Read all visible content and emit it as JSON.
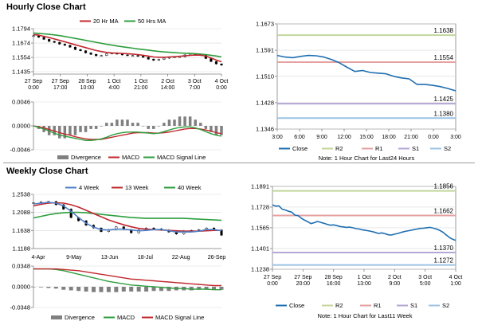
{
  "sections": {
    "hourly_title": "Hourly Close Chart",
    "weekly_title": "Weekly Close Chart"
  },
  "colors": {
    "close": "#1f6fb2",
    "ma_short": "#c0272d",
    "ma_mid": "#2e9e3e",
    "ma_long": "#2e9e3e",
    "ma_4w": "#4f7fc8",
    "divergence": "#808080",
    "macd": "#2e9e3e",
    "signal": "#c0272d",
    "r2": "#c3d69b",
    "r1": "#e6a0a0",
    "s1": "#b4a7d6",
    "s2": "#9cc3e6",
    "grid": "#d9d9d9",
    "axis": "#808080"
  },
  "chart_data": [
    {
      "id": "hourly_price",
      "type": "line",
      "legend": [
        "20 Hr MA",
        "50 Hrs MA"
      ],
      "y_ticks": [
        "1.1794",
        "1.1674",
        "1.1554",
        "1.1435"
      ],
      "ylim": [
        1.1415,
        1.1794
      ],
      "x_labels": [
        "27 Sep\n0:00",
        "27 Sep\n17:00",
        "28 Sep\n10:00",
        "1 Oct\n4:00",
        "1 Oct\n21:00",
        "2 Oct\n14:00",
        "3 Oct\n7:00",
        "4 Oct\n0:00"
      ],
      "n": 37,
      "candles": [
        1.1735,
        1.1722,
        1.1705,
        1.1688,
        1.168,
        1.1665,
        1.1655,
        1.164,
        1.162,
        1.161,
        1.1592,
        1.158,
        1.1568,
        1.157,
        1.1585,
        1.159,
        1.1582,
        1.1575,
        1.157,
        1.157,
        1.1565,
        1.1555,
        1.154,
        1.153,
        1.1538,
        1.1548,
        1.1555,
        1.1558,
        1.156,
        1.1575,
        1.1585,
        1.158,
        1.1572,
        1.1545,
        1.152,
        1.15,
        1.149
      ],
      "series": [
        {
          "name": "20 Hr MA",
          "color_key": "ma_short",
          "values": [
            1.1745,
            1.174,
            1.173,
            1.172,
            1.1708,
            1.1696,
            1.1685,
            1.1672,
            1.166,
            1.1648,
            1.1636,
            1.1624,
            1.1612,
            1.1603,
            1.1596,
            1.1592,
            1.159,
            1.1588,
            1.1585,
            1.1582,
            1.1578,
            1.1572,
            1.1565,
            1.1558,
            1.1555,
            1.1555,
            1.1557,
            1.156,
            1.1563,
            1.1567,
            1.1571,
            1.1574,
            1.1573,
            1.1565,
            1.155,
            1.1532,
            1.1518
          ]
        },
        {
          "name": "50 Hrs MA",
          "color_key": "ma_mid",
          "values": [
            1.1758,
            1.1755,
            1.1751,
            1.1747,
            1.1742,
            1.1736,
            1.1729,
            1.1721,
            1.1713,
            1.1705,
            1.1696,
            1.1688,
            1.168,
            1.1672,
            1.1664,
            1.1657,
            1.165,
            1.1643,
            1.1637,
            1.1631,
            1.1625,
            1.162,
            1.1615,
            1.1609,
            1.1604,
            1.16,
            1.1597,
            1.1594,
            1.1591,
            1.1589,
            1.1587,
            1.1585,
            1.1582,
            1.1578,
            1.1572,
            1.1566,
            1.1558
          ]
        }
      ]
    },
    {
      "id": "hourly_macd",
      "type": "bar",
      "y_ticks": [
        "0.0046",
        "0.0000",
        "-0.0046"
      ],
      "ylim": [
        -0.0046,
        0.0046
      ],
      "legend": [
        "Divergence",
        "MACD",
        "MACD Signal Line"
      ],
      "n": 37,
      "divergence": [
        0.0,
        -0.0001,
        -0.0002,
        -0.0003,
        -0.0003,
        -0.0004,
        -0.0004,
        -0.0003,
        -0.0003,
        -0.0002,
        -0.0002,
        -0.0001,
        -0.0001,
        0.0,
        0.0001,
        0.0001,
        0.0002,
        0.0002,
        0.0002,
        0.0001,
        0.0001,
        0.0,
        -0.0001,
        -0.0001,
        0.0,
        0.0001,
        0.0002,
        0.0002,
        0.0003,
        0.0003,
        0.0003,
        0.0002,
        0.0001,
        -0.0001,
        -0.0002,
        -0.0003,
        -0.0003
      ],
      "series": [
        {
          "name": "MACD",
          "color_key": "macd",
          "values": [
            0.0,
            -0.0003,
            -0.0006,
            -0.001,
            -0.0014,
            -0.0018,
            -0.002,
            -0.0022,
            -0.0024,
            -0.0026,
            -0.0028,
            -0.0028,
            -0.0027,
            -0.0025,
            -0.0022,
            -0.0018,
            -0.0015,
            -0.0013,
            -0.0012,
            -0.0012,
            -0.0012,
            -0.0013,
            -0.0014,
            -0.0015,
            -0.0014,
            -0.0011,
            -0.0008,
            -0.0005,
            -0.0003,
            -0.0002,
            -0.0002,
            -0.0004,
            -0.0007,
            -0.0011,
            -0.0015,
            -0.0018,
            -0.002
          ]
        },
        {
          "name": "MACD Signal Line",
          "color_key": "signal",
          "values": [
            0.0,
            -0.0002,
            -0.0004,
            -0.0007,
            -0.001,
            -0.0013,
            -0.0016,
            -0.0018,
            -0.0021,
            -0.0023,
            -0.0025,
            -0.0026,
            -0.0026,
            -0.0026,
            -0.0024,
            -0.0022,
            -0.002,
            -0.0018,
            -0.0016,
            -0.0014,
            -0.0013,
            -0.0013,
            -0.0013,
            -0.0014,
            -0.0014,
            -0.0013,
            -0.0012,
            -0.001,
            -0.0008,
            -0.0006,
            -0.0005,
            -0.0005,
            -0.0006,
            -0.0008,
            -0.001,
            -0.0013,
            -0.0015
          ]
        }
      ]
    },
    {
      "id": "hourly_pivot",
      "type": "line",
      "y_ticks": [
        "1.1673",
        "1.1591",
        "1.1510",
        "1.1428",
        "1.1346"
      ],
      "ylim": [
        1.1346,
        1.1673
      ],
      "x_labels": [
        "3:00",
        "6:00",
        "9:00",
        "12:00",
        "15:00",
        "18:00",
        "21:00",
        "0:00",
        "3:00"
      ],
      "close": [
        1.1575,
        1.157,
        1.1568,
        1.1572,
        1.1575,
        1.1574,
        1.157,
        1.1562,
        1.1552,
        1.1538,
        1.1525,
        1.1528,
        1.1522,
        1.152,
        1.1518,
        1.151,
        1.1505,
        1.1502,
        1.1485,
        1.1485,
        1.1482,
        1.1478,
        1.1472,
        1.1465
      ],
      "levels": [
        {
          "name": "R2",
          "value": 1.1638,
          "label": "1.1638",
          "color_key": "r2"
        },
        {
          "name": "R1",
          "value": 1.1554,
          "label": "1.1554",
          "color_key": "r1"
        },
        {
          "name": "S1",
          "value": 1.1425,
          "label": "1.1425",
          "color_key": "s1"
        },
        {
          "name": "S2",
          "value": 1.138,
          "label": "1.1380",
          "color_key": "s2"
        }
      ],
      "legend": [
        "Close",
        "R2",
        "R1",
        "S1",
        "S2"
      ],
      "note": "Note: 1 Hour Chart for Last24 Hours"
    },
    {
      "id": "weekly_price",
      "type": "line",
      "legend": [
        "4 Week",
        "13 Week",
        "40 Week"
      ],
      "y_ticks": [
        "1.2538",
        "1.2088",
        "1.1638",
        "1.1188"
      ],
      "ylim": [
        1.1188,
        1.2538
      ],
      "x_labels": [
        "4-Apr",
        "9-May",
        "13-Jun",
        "18-Jul",
        "22-Aug",
        "26-Sep"
      ],
      "n": 26,
      "candles": [
        1.233,
        1.235,
        1.236,
        1.228,
        1.217,
        1.196,
        1.188,
        1.177,
        1.17,
        1.161,
        1.166,
        1.173,
        1.166,
        1.158,
        1.165,
        1.17,
        1.168,
        1.165,
        1.16,
        1.155,
        1.163,
        1.164,
        1.166,
        1.17,
        1.165,
        1.152
      ],
      "series": [
        {
          "name": "4 Week",
          "color_key": "ma_4w",
          "values": [
            1.23,
            1.232,
            1.234,
            1.232,
            1.225,
            1.212,
            1.196,
            1.182,
            1.172,
            1.166,
            1.165,
            1.167,
            1.167,
            1.165,
            1.163,
            1.164,
            1.166,
            1.166,
            1.163,
            1.16,
            1.16,
            1.16,
            1.162,
            1.166,
            1.166,
            1.163
          ]
        },
        {
          "name": "13 Week",
          "color_key": "ma_short",
          "values": [
            1.225,
            1.229,
            1.232,
            1.233,
            1.232,
            1.228,
            1.222,
            1.214,
            1.206,
            1.198,
            1.19,
            1.184,
            1.178,
            1.173,
            1.169,
            1.167,
            1.166,
            1.165,
            1.164,
            1.163,
            1.162,
            1.162,
            1.162,
            1.163,
            1.164,
            1.164
          ]
        },
        {
          "name": "40 Week",
          "color_key": "ma_mid",
          "values": [
            1.195,
            1.199,
            1.203,
            1.206,
            1.208,
            1.209,
            1.209,
            1.208,
            1.206,
            1.204,
            1.202,
            1.2,
            1.198,
            1.196,
            1.195,
            1.194,
            1.194,
            1.194,
            1.194,
            1.194,
            1.194,
            1.193,
            1.192,
            1.191,
            1.19,
            1.189
          ]
        }
      ]
    },
    {
      "id": "weekly_macd",
      "type": "bar",
      "y_ticks": [
        "0.0348",
        "0.0000",
        "-0.0348"
      ],
      "ylim": [
        -0.0348,
        0.0348
      ],
      "legend": [
        "Divergence",
        "MACD",
        "MACD Signal Line"
      ],
      "n": 26,
      "divergence": [
        0.0,
        -0.001,
        -0.002,
        -0.003,
        -0.005,
        -0.006,
        -0.007,
        -0.008,
        -0.009,
        -0.009,
        -0.009,
        -0.009,
        -0.008,
        -0.008,
        -0.008,
        -0.008,
        -0.007,
        -0.007,
        -0.007,
        -0.006,
        -0.006,
        -0.006,
        -0.005,
        -0.005,
        -0.005,
        -0.005
      ],
      "series": [
        {
          "name": "MACD",
          "color_key": "macd",
          "values": [
            0.03,
            0.03,
            0.03,
            0.029,
            0.027,
            0.024,
            0.021,
            0.018,
            0.015,
            0.012,
            0.009,
            0.007,
            0.005,
            0.003,
            0.002,
            0.001,
            0.0,
            -0.001,
            -0.002,
            -0.003,
            -0.003,
            -0.004,
            -0.004,
            -0.004,
            -0.005,
            -0.005
          ]
        },
        {
          "name": "MACD Signal Line",
          "color_key": "signal",
          "values": [
            0.03,
            0.03,
            0.03,
            0.03,
            0.029,
            0.028,
            0.027,
            0.025,
            0.023,
            0.021,
            0.019,
            0.017,
            0.015,
            0.013,
            0.012,
            0.011,
            0.01,
            0.009,
            0.008,
            0.007,
            0.006,
            0.005,
            0.004,
            0.003,
            0.002,
            0.002
          ]
        }
      ]
    },
    {
      "id": "weekly_pivot",
      "type": "line",
      "y_ticks": [
        "1.1891",
        "1.1728",
        "1.1565",
        "1.1401",
        "1.1238"
      ],
      "ylim": [
        1.1238,
        1.1891
      ],
      "x_labels": [
        "27 Sep\n0:00",
        "27 Sep\n20:00",
        "28 Sep\n16:00",
        "1 Oct\n13:00",
        "2 Oct\n9:00",
        "3 Oct\n5:00",
        "4 Oct\n1:00"
      ],
      "close": [
        1.1745,
        1.1735,
        1.1738,
        1.1712,
        1.1705,
        1.1695,
        1.1688,
        1.1665,
        1.166,
        1.164,
        1.1625,
        1.1612,
        1.1598,
        1.1605,
        1.1615,
        1.1608,
        1.16,
        1.1592,
        1.1585,
        1.1588,
        1.1582,
        1.1575,
        1.1572,
        1.1568,
        1.157,
        1.1565,
        1.1558,
        1.1555,
        1.1548,
        1.1545,
        1.154,
        1.1535,
        1.1528,
        1.152,
        1.1525,
        1.1518,
        1.151,
        1.1508,
        1.1515,
        1.152,
        1.1528,
        1.1535,
        1.154,
        1.1545,
        1.155,
        1.1555,
        1.156,
        1.1562,
        1.1565,
        1.1568,
        1.1562,
        1.1555,
        1.1545,
        1.153,
        1.151,
        1.149,
        1.1475,
        1.1465
      ],
      "levels": [
        {
          "name": "R2",
          "value": 1.1856,
          "label": "1.1856",
          "color_key": "r2"
        },
        {
          "name": "R1",
          "value": 1.1662,
          "label": "1.1662",
          "color_key": "r1"
        },
        {
          "name": "S1",
          "value": 1.137,
          "label": "1.1370",
          "color_key": "s1"
        },
        {
          "name": "S2",
          "value": 1.1272,
          "label": "1.1272",
          "color_key": "s2"
        }
      ],
      "legend": [
        "Close",
        "R2",
        "R1",
        "S1",
        "S2"
      ],
      "note": "Note: 1 Hour Chart for Last11 Week"
    }
  ]
}
